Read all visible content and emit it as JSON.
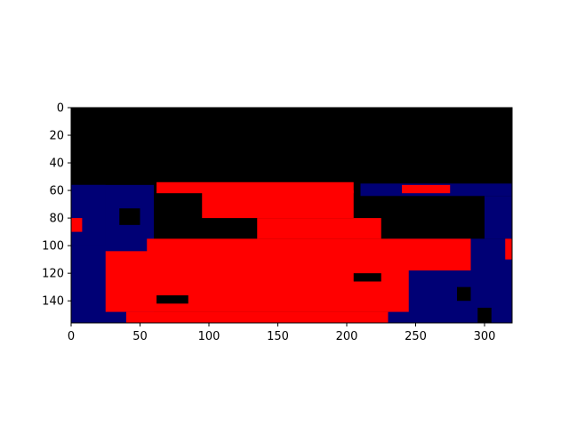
{
  "colors": {
    "background": "#000000",
    "mask_red": "#ff0000",
    "mask_navy": "#000075",
    "axis": "#000000",
    "figure_bg": "#ffffff"
  },
  "chart_data": {
    "type": "heatmap",
    "title": "",
    "xlabel": "",
    "ylabel": "",
    "image_size": [
      320,
      156
    ],
    "xlim": [
      0,
      320
    ],
    "ylim": [
      156,
      0
    ],
    "xticks": [
      0,
      50,
      100,
      150,
      200,
      250,
      300
    ],
    "xtick_labels": [
      "0",
      "50",
      "100",
      "150",
      "200",
      "250",
      "300"
    ],
    "yticks": [
      0,
      20,
      40,
      60,
      80,
      100,
      120,
      140
    ],
    "ytick_labels": [
      "0",
      "20",
      "40",
      "60",
      "80",
      "100",
      "120",
      "140"
    ],
    "grid": false,
    "legend": "none",
    "regions": [
      {
        "class": "navy",
        "x": [
          0,
          60
        ],
        "y": [
          56,
          156
        ]
      },
      {
        "class": "navy",
        "x": [
          210,
          320
        ],
        "y": [
          55,
          64
        ]
      },
      {
        "class": "navy",
        "x": [
          230,
          320
        ],
        "y": [
          95,
          156
        ]
      },
      {
        "class": "navy",
        "x": [
          300,
          320
        ],
        "y": [
          64,
          95
        ]
      },
      {
        "class": "navy",
        "x": [
          0,
          25
        ],
        "y": [
          56,
          100
        ]
      },
      {
        "class": "navy",
        "x": [
          55,
          72
        ],
        "y": [
          120,
          140
        ]
      },
      {
        "class": "black",
        "x": [
          35,
          50
        ],
        "y": [
          73,
          85
        ]
      },
      {
        "class": "black",
        "x": [
          60,
          95
        ],
        "y": [
          70,
          100
        ]
      },
      {
        "class": "red",
        "x": [
          62,
          205
        ],
        "y": [
          54,
          62
        ]
      },
      {
        "class": "red",
        "x": [
          95,
          205
        ],
        "y": [
          60,
          80
        ]
      },
      {
        "class": "red",
        "x": [
          135,
          225
        ],
        "y": [
          80,
          95
        ]
      },
      {
        "class": "red",
        "x": [
          25,
          245
        ],
        "y": [
          104,
          148
        ]
      },
      {
        "class": "red",
        "x": [
          40,
          230
        ],
        "y": [
          148,
          156
        ]
      },
      {
        "class": "red",
        "x": [
          55,
          290
        ],
        "y": [
          95,
          118
        ]
      },
      {
        "class": "red",
        "x": [
          85,
          235
        ],
        "y": [
          100,
          140
        ]
      },
      {
        "class": "red",
        "x": [
          240,
          275
        ],
        "y": [
          56,
          62
        ]
      },
      {
        "class": "red",
        "x": [
          315,
          320
        ],
        "y": [
          95,
          110
        ]
      },
      {
        "class": "red",
        "x": [
          0,
          8
        ],
        "y": [
          80,
          90
        ]
      },
      {
        "class": "black",
        "x": [
          205,
          225
        ],
        "y": [
          120,
          126
        ]
      },
      {
        "class": "black",
        "x": [
          62,
          85
        ],
        "y": [
          136,
          142
        ]
      },
      {
        "class": "black",
        "x": [
          280,
          290
        ],
        "y": [
          130,
          140
        ]
      },
      {
        "class": "black",
        "x": [
          295,
          305
        ],
        "y": [
          145,
          156
        ]
      }
    ]
  }
}
